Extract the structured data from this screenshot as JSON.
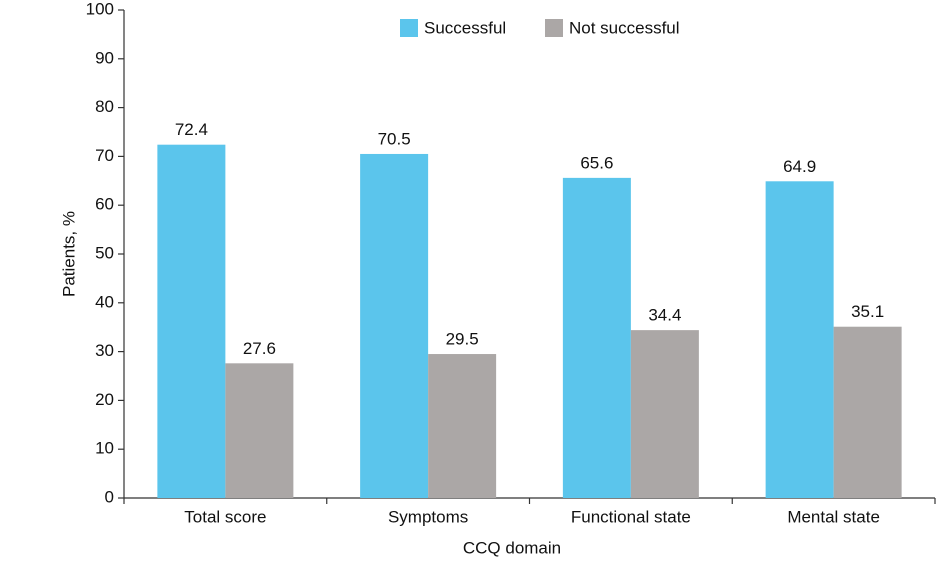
{
  "chart_data": {
    "type": "bar",
    "x_label": "CCQ domain",
    "y_label": "Patients, %",
    "categories": [
      "Total score",
      "Symptoms",
      "Functional state",
      "Mental state"
    ],
    "series": [
      {
        "name": "Successful",
        "color": "#5bc5ec",
        "values": [
          72.4,
          70.5,
          65.6,
          64.9
        ]
      },
      {
        "name": "Not successful",
        "color": "#aba7a6",
        "values": [
          27.6,
          29.5,
          34.4,
          35.1
        ]
      }
    ],
    "ylim": [
      0,
      100
    ],
    "yticks": [
      0,
      10,
      20,
      30,
      40,
      50,
      60,
      70,
      80,
      90,
      100
    ],
    "legend": "top"
  }
}
